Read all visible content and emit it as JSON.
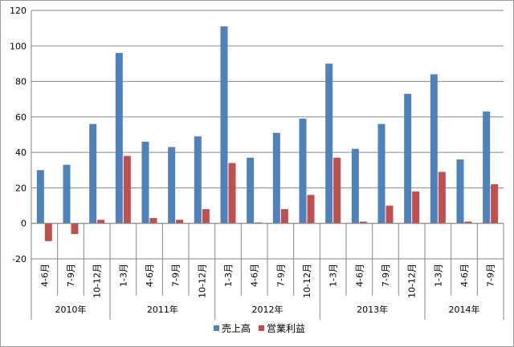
{
  "chart_data": {
    "type": "bar",
    "categories": [
      "4-6月",
      "7-9月",
      "10-12月",
      "1-3月",
      "4-6月",
      "7-9月",
      "10-12月",
      "1-3月",
      "4-6月",
      "7-9月",
      "10-12月",
      "1-3月",
      "4-6月",
      "7-9月",
      "10-12月",
      "1-3月",
      "4-6月",
      "7-9月"
    ],
    "year_groups": [
      {
        "label": "2010年",
        "count": 3
      },
      {
        "label": "2011年",
        "count": 4
      },
      {
        "label": "2012年",
        "count": 4
      },
      {
        "label": "2013年",
        "count": 4
      },
      {
        "label": "2014年",
        "count": 3
      }
    ],
    "series": [
      {
        "name": "売上高",
        "color": "#4f81bd",
        "values": [
          30,
          33,
          56,
          96,
          46,
          43,
          49,
          111,
          37,
          51,
          59,
          90,
          42,
          56,
          73,
          84,
          36,
          63
        ]
      },
      {
        "name": "営業利益",
        "color": "#c0504d",
        "values": [
          -10,
          -6,
          2,
          38,
          3,
          2,
          8,
          34,
          0.5,
          8,
          16,
          37,
          1,
          10,
          18,
          29,
          1,
          22
        ]
      }
    ],
    "yticks": [
      "120",
      "100",
      "80",
      "60",
      "40",
      "20",
      "0",
      "-20"
    ],
    "ylim": [
      -20,
      120
    ],
    "grid": true,
    "legend": "bottom"
  }
}
